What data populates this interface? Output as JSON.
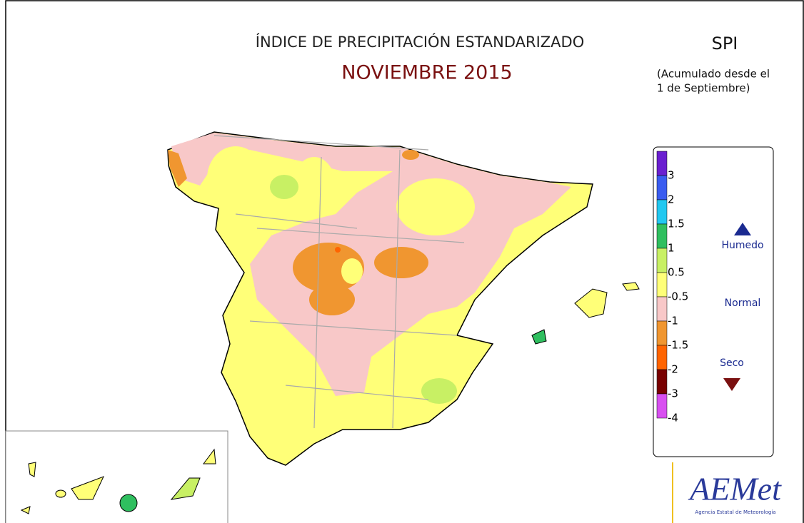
{
  "header": {
    "title": "ÍNDICE DE PRECIPITACIÓN ESTANDARIZADO",
    "subtitle": "NOVIEMBRE 2015",
    "index": "SPI",
    "note_line1": "(Acumulado desde el",
    "note_line2": "1 de Septiembre)"
  },
  "legend": {
    "colors": [
      "#6a1fd0",
      "#3a5cf0",
      "#22c8f0",
      "#2fbf5f",
      "#c8f064",
      "#ffff78",
      "#f8c8c8",
      "#f09630",
      "#ff6400",
      "#780000",
      "#d850f0"
    ],
    "labels": [
      "3",
      "2",
      "1.5",
      "1",
      "0.5",
      "-0.5",
      "-1",
      "-1.5",
      "-2",
      "-3",
      "-4"
    ],
    "wet": "Humedo",
    "normal": "Normal",
    "dry": "Seco"
  },
  "logo": {
    "name": "AEMet",
    "agency": "Agencia Estatal de Meteorología"
  }
}
